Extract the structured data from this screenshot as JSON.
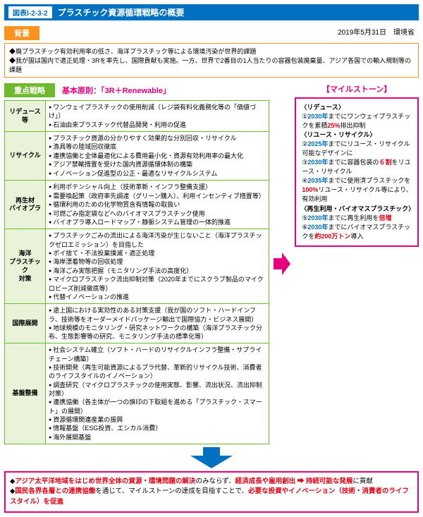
{
  "header": {
    "chip": "図表Ⅰ-2-3-2",
    "title": "プラスチック資源循環戦略の概要"
  },
  "haikei": {
    "label": "背景",
    "date": "2019年5月31日　環境省",
    "lines": [
      "廃プラスチック有効利用率の低さ、海洋プラスチック等による環境汚染が世界的課題",
      "我が国は国内で適正処理・3Rを率先し、国際貢献も実施。一方、世界で2番目の1人当たりの容器包装廃棄量、アジア各国での輸入規制等の課題"
    ]
  },
  "strategy": {
    "label": "重点戦略",
    "principle": "基本原則：「3R＋Renewable」"
  },
  "rows": [
    {
      "cat": "リデュース等",
      "items": [
        "ワンウェイプラスチックの使用削減（レジ袋有料化義務化等の「価値づけ」）",
        "石油由来プラスチック代替品開発・利用の促進"
      ]
    },
    {
      "cat": "リサイクル",
      "items": [
        "プラスチック資源の分かりやすく効果的な分別回収・リサイクル",
        "漁具等の陸域回収徹底",
        "連携協働と全体最適化による費用最小化・資源有効利用率の最大化",
        "アジア禁輸措置を受けた国内資源循環体制の構築",
        "イノベーション促進型の公正・最適なリサイクルシステム"
      ]
    },
    {
      "cat": "再生材\nバイオプラ",
      "items": [
        "利用ポテンシャル向上（技術革新・インフラ整備支援）",
        "需要喚起策（政府率先調達（グリーン購入）、利用インセンティブ措置等）",
        "循環利用のための化学物質含有情報の取扱い",
        "可燃ごみ指定袋などへのバイオマスプラスチック使用",
        "バイオプラ導入ロードマップ・静脈システム管理の一体的推進"
      ]
    },
    {
      "cat": "海洋\nプラスチック\n対策",
      "items": [
        "プラスチックごみの流出による海洋汚染が生じないこと（海洋プラスチックゼロエミッション）を目指した",
        "ポイ捨て・不法投棄撲滅・適正処理",
        "海岸漂着物等の回収処理",
        "海洋ごみ実態把握（モニタリング手法の高度化）",
        "マイクロプラスチック流出抑制対策（2020年までにスクラブ製品のマイクロビーズ削減徹底等）",
        "代替イノベーションの推進"
      ]
    },
    {
      "cat": "国際展開",
      "items": [
        "途上国における実効性のある対策支援（我が国のソフト・ハードインフラ、技術等をオーダーメイドパッケージ輸出で国際協力・ビジネス展開）",
        "地球規模のモニタリング・研究ネットワークの構築（海洋プラスチック分布、生態影響等の研究、モニタリング手法の標準化等）"
      ]
    },
    {
      "cat": "基盤整備",
      "items": [
        "社会システム確立（ソフト・ハードのリサイクルインフラ整備・サプライチェーン構築）",
        "技術開発（再生可能資源によるプラ代替、革新的リサイクル技術、消費者のライフスタイルのイノベーション）",
        "調査研究（マイクロプラスチックの使用実態、影響、流出状況、流出抑制対策）",
        "連携協働（各主体が一つの旗印の下取組を進める「プラスチック・スマート」の展開）",
        "資源循環関連産業の振興",
        "情報基盤（ESG投資、エシカル消費）",
        "海外展開基盤"
      ]
    }
  ],
  "milestone": {
    "head": "【マイルストーン】",
    "groups": [
      {
        "name": "〈リデュース〉",
        "pts": [
          {
            "n": "①",
            "pre": "",
            "yr": "2030年",
            "post": "までにワンウェイプラスチックを累積",
            "v": "25%",
            "tail": "排出抑制"
          }
        ]
      },
      {
        "name": "〈リユース・リサイクル〉",
        "pts": [
          {
            "n": "②",
            "pre": "",
            "yr": "2025年",
            "post": "までにリユース・リサイクル可能なデザインに",
            "v": "",
            "tail": ""
          },
          {
            "n": "③",
            "pre": "",
            "yr": "2030年",
            "post": "までに容器包装の",
            "v": "６割",
            "tail": "をリユース・リサイクル"
          },
          {
            "n": "④",
            "pre": "",
            "yr": "2035年",
            "post": "までに使用済プラスチックを",
            "v": "100%",
            "tail": "リユース・リサイクル等により、有効利用"
          }
        ]
      },
      {
        "name": "〈再生利用・バイオマスプラスチック〉",
        "pts": [
          {
            "n": "⑤",
            "pre": "",
            "yr": "2030年",
            "post": "までに再生利用を",
            "v": "倍増",
            "tail": ""
          },
          {
            "n": "⑥",
            "pre": "",
            "yr": "2030年",
            "post": "までにバイオマスプラスチックを",
            "v": "約200万トン",
            "tail": "導入"
          }
        ]
      }
    ]
  },
  "bottom": {
    "lines": [
      {
        "segments": [
          {
            "t": "アジア太平洋地域をはじめ世界全体の資源・環境問題の解決",
            "c": "red"
          },
          {
            "t": "のみならず、",
            "c": ""
          },
          {
            "t": "経済成長や雇用創出 ➡ 持続可能な発展",
            "c": "red"
          },
          {
            "t": "に貢献",
            "c": ""
          }
        ]
      },
      {
        "segments": [
          {
            "t": "国民各界各層との連携協働",
            "c": "red"
          },
          {
            "t": "を通じて、マイルストーンの達成を目指すことで、",
            "c": ""
          },
          {
            "t": "必要な投資やイノベーション（技術・消費者のライフスタイル）を促進",
            "c": "red"
          }
        ]
      }
    ]
  }
}
